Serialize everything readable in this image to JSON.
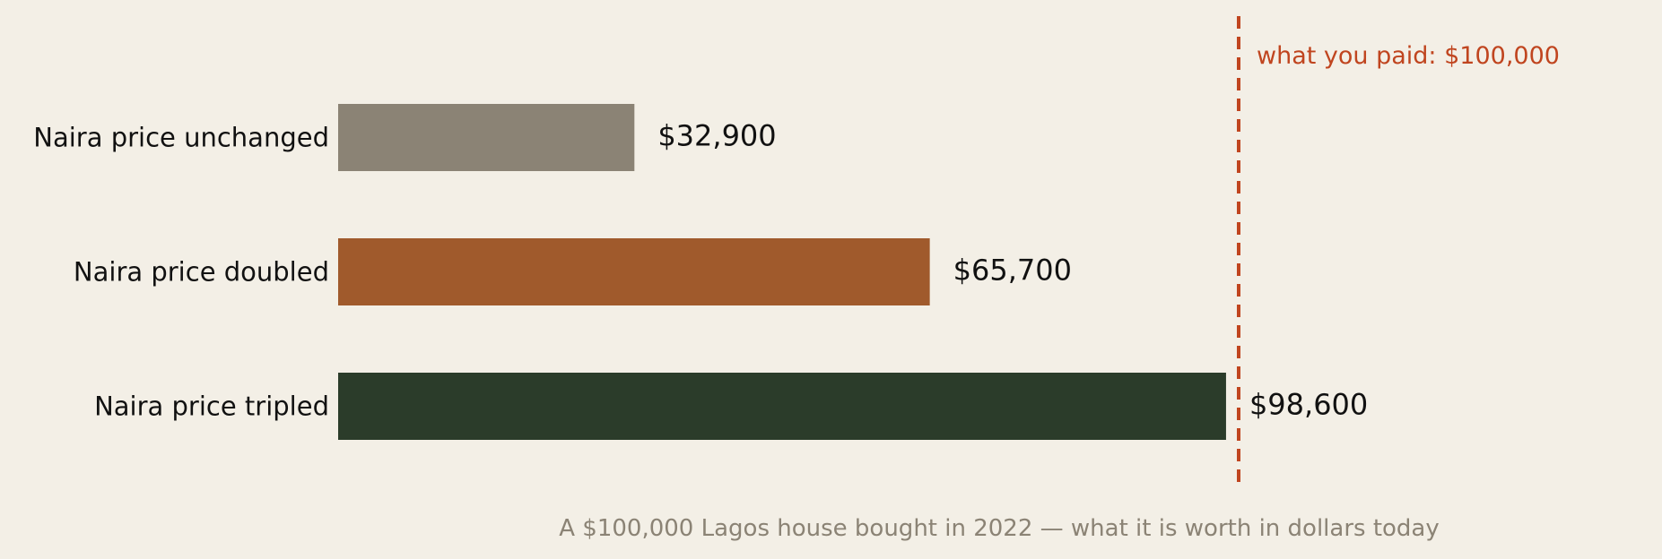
{
  "chart_data": {
    "type": "bar",
    "orientation": "horizontal",
    "categories": [
      "Naira price unchanged",
      "Naira price doubled",
      "Naira price tripled"
    ],
    "values": [
      32900,
      65700,
      98600
    ],
    "value_labels": [
      "$32,900",
      "$65,700",
      "$98,600"
    ],
    "bar_colors": [
      "#8b8375",
      "#a05a2c",
      "#2b3c2a"
    ],
    "reference_line": {
      "value": 100000,
      "label": "what you paid: $100,000",
      "color": "#c0451f"
    },
    "caption": "A $100,000 Lagos house bought in 2022 — what it is worth in dollars today",
    "caption_color": "#8b8375",
    "xlim": [
      0,
      100000
    ],
    "grid": false
  }
}
